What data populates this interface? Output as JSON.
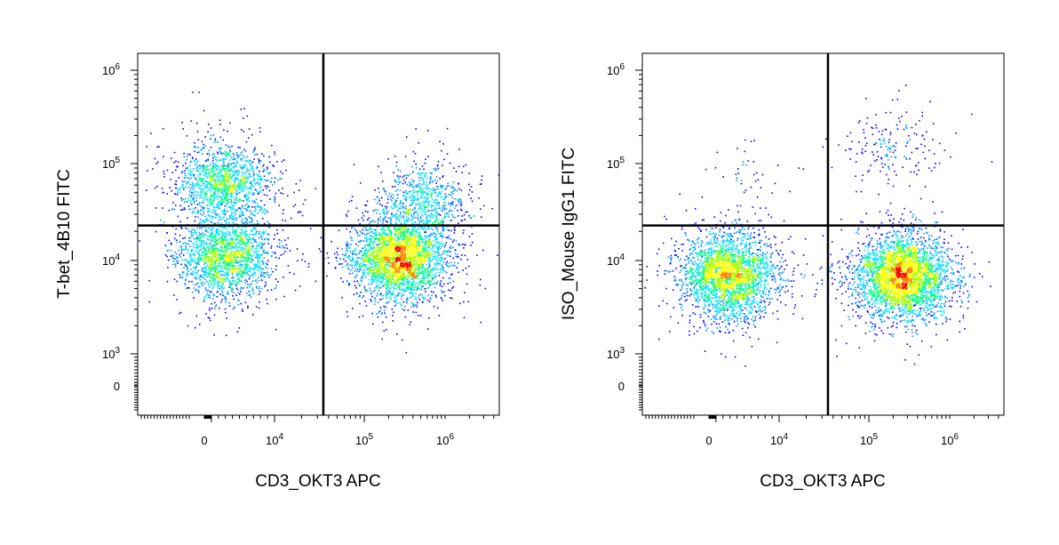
{
  "chart_data": [
    {
      "type": "scatter",
      "subtype": "flow-cytometry pseudocolor density plot",
      "xlabel": "CD3_OKT3 APC",
      "ylabel": "T-bet_4B10 FITC",
      "x_scale": "biexponential",
      "y_scale": "biexponential",
      "x_ticks": [
        "0",
        "10^4",
        "10^5",
        "10^6"
      ],
      "y_ticks": [
        "0",
        "10^3",
        "10^4",
        "10^5",
        "10^6"
      ],
      "gate": {
        "x": 35000,
        "y": 23000
      },
      "populations": [
        {
          "x": 2600,
          "y": 62000,
          "count": 1400
        },
        {
          "x": 3000,
          "y": 11000,
          "count": 1800
        },
        {
          "x": 260000,
          "y": 10500,
          "count": 2800
        },
        {
          "x": 520000,
          "y": 40000,
          "count": 700
        }
      ]
    },
    {
      "type": "scatter",
      "subtype": "flow-cytometry pseudocolor density plot",
      "xlabel": "CD3_OKT3 APC",
      "ylabel": "ISO_Mouse IgG1 FITC",
      "x_scale": "biexponential",
      "y_scale": "biexponential",
      "x_ticks": [
        "0",
        "10^4",
        "10^5",
        "10^6"
      ],
      "y_ticks": [
        "0",
        "10^3",
        "10^4",
        "10^5",
        "10^6"
      ],
      "gate": {
        "x": 35000,
        "y": 23000
      },
      "populations": [
        {
          "x": 2700,
          "y": 7000,
          "count": 2600
        },
        {
          "x": 250000,
          "y": 6800,
          "count": 3200
        },
        {
          "x": 200000,
          "y": 150000,
          "count": 180
        },
        {
          "x": 6000,
          "y": 60000,
          "count": 45
        }
      ]
    }
  ],
  "colors": {
    "density_scale": [
      "#0000ff",
      "#0096ff",
      "#00e0ff",
      "#00ff80",
      "#a0ff00",
      "#ffff00",
      "#ff8000",
      "#ff0000"
    ],
    "gate_line": "#000000",
    "frame": "#000000"
  }
}
